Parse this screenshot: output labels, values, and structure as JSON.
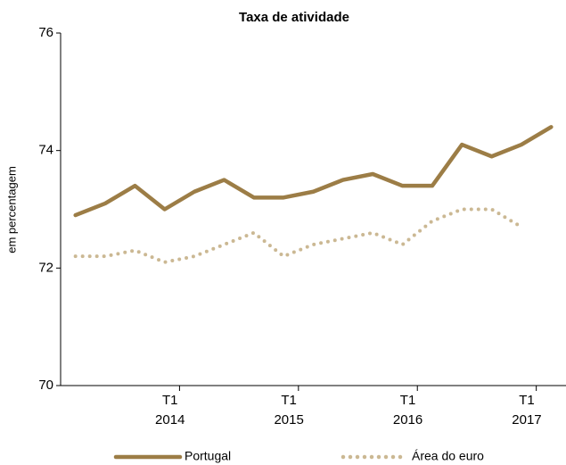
{
  "chart_data": {
    "type": "line",
    "title": "Taxa de atividade",
    "y_label": "em percentagem",
    "categories": [
      null,
      null,
      null,
      [
        "T1",
        "2014"
      ],
      null,
      null,
      null,
      [
        "T1",
        "2015"
      ],
      null,
      null,
      null,
      [
        "T1",
        "2016"
      ],
      null,
      null,
      null,
      [
        "T1",
        "2017"
      ],
      null
    ],
    "series": [
      {
        "name": "Portugal",
        "color": "#9c7d46",
        "style": "solid",
        "values": [
          72.9,
          73.1,
          73.4,
          73.0,
          73.3,
          73.5,
          73.2,
          73.2,
          73.3,
          73.5,
          73.6,
          73.4,
          73.4,
          74.1,
          73.9,
          74.1,
          74.4
        ]
      },
      {
        "name": "Área do euro",
        "color": "#cbb893",
        "style": "dotted",
        "values": [
          72.2,
          72.2,
          72.3,
          72.1,
          72.2,
          72.4,
          72.6,
          72.2,
          72.4,
          72.5,
          72.6,
          72.4,
          72.8,
          73.0,
          73.0,
          72.7,
          null
        ]
      }
    ],
    "ylim": [
      70,
      76
    ],
    "yticks": [
      70,
      72,
      74,
      76
    ],
    "legend": "bottom"
  }
}
